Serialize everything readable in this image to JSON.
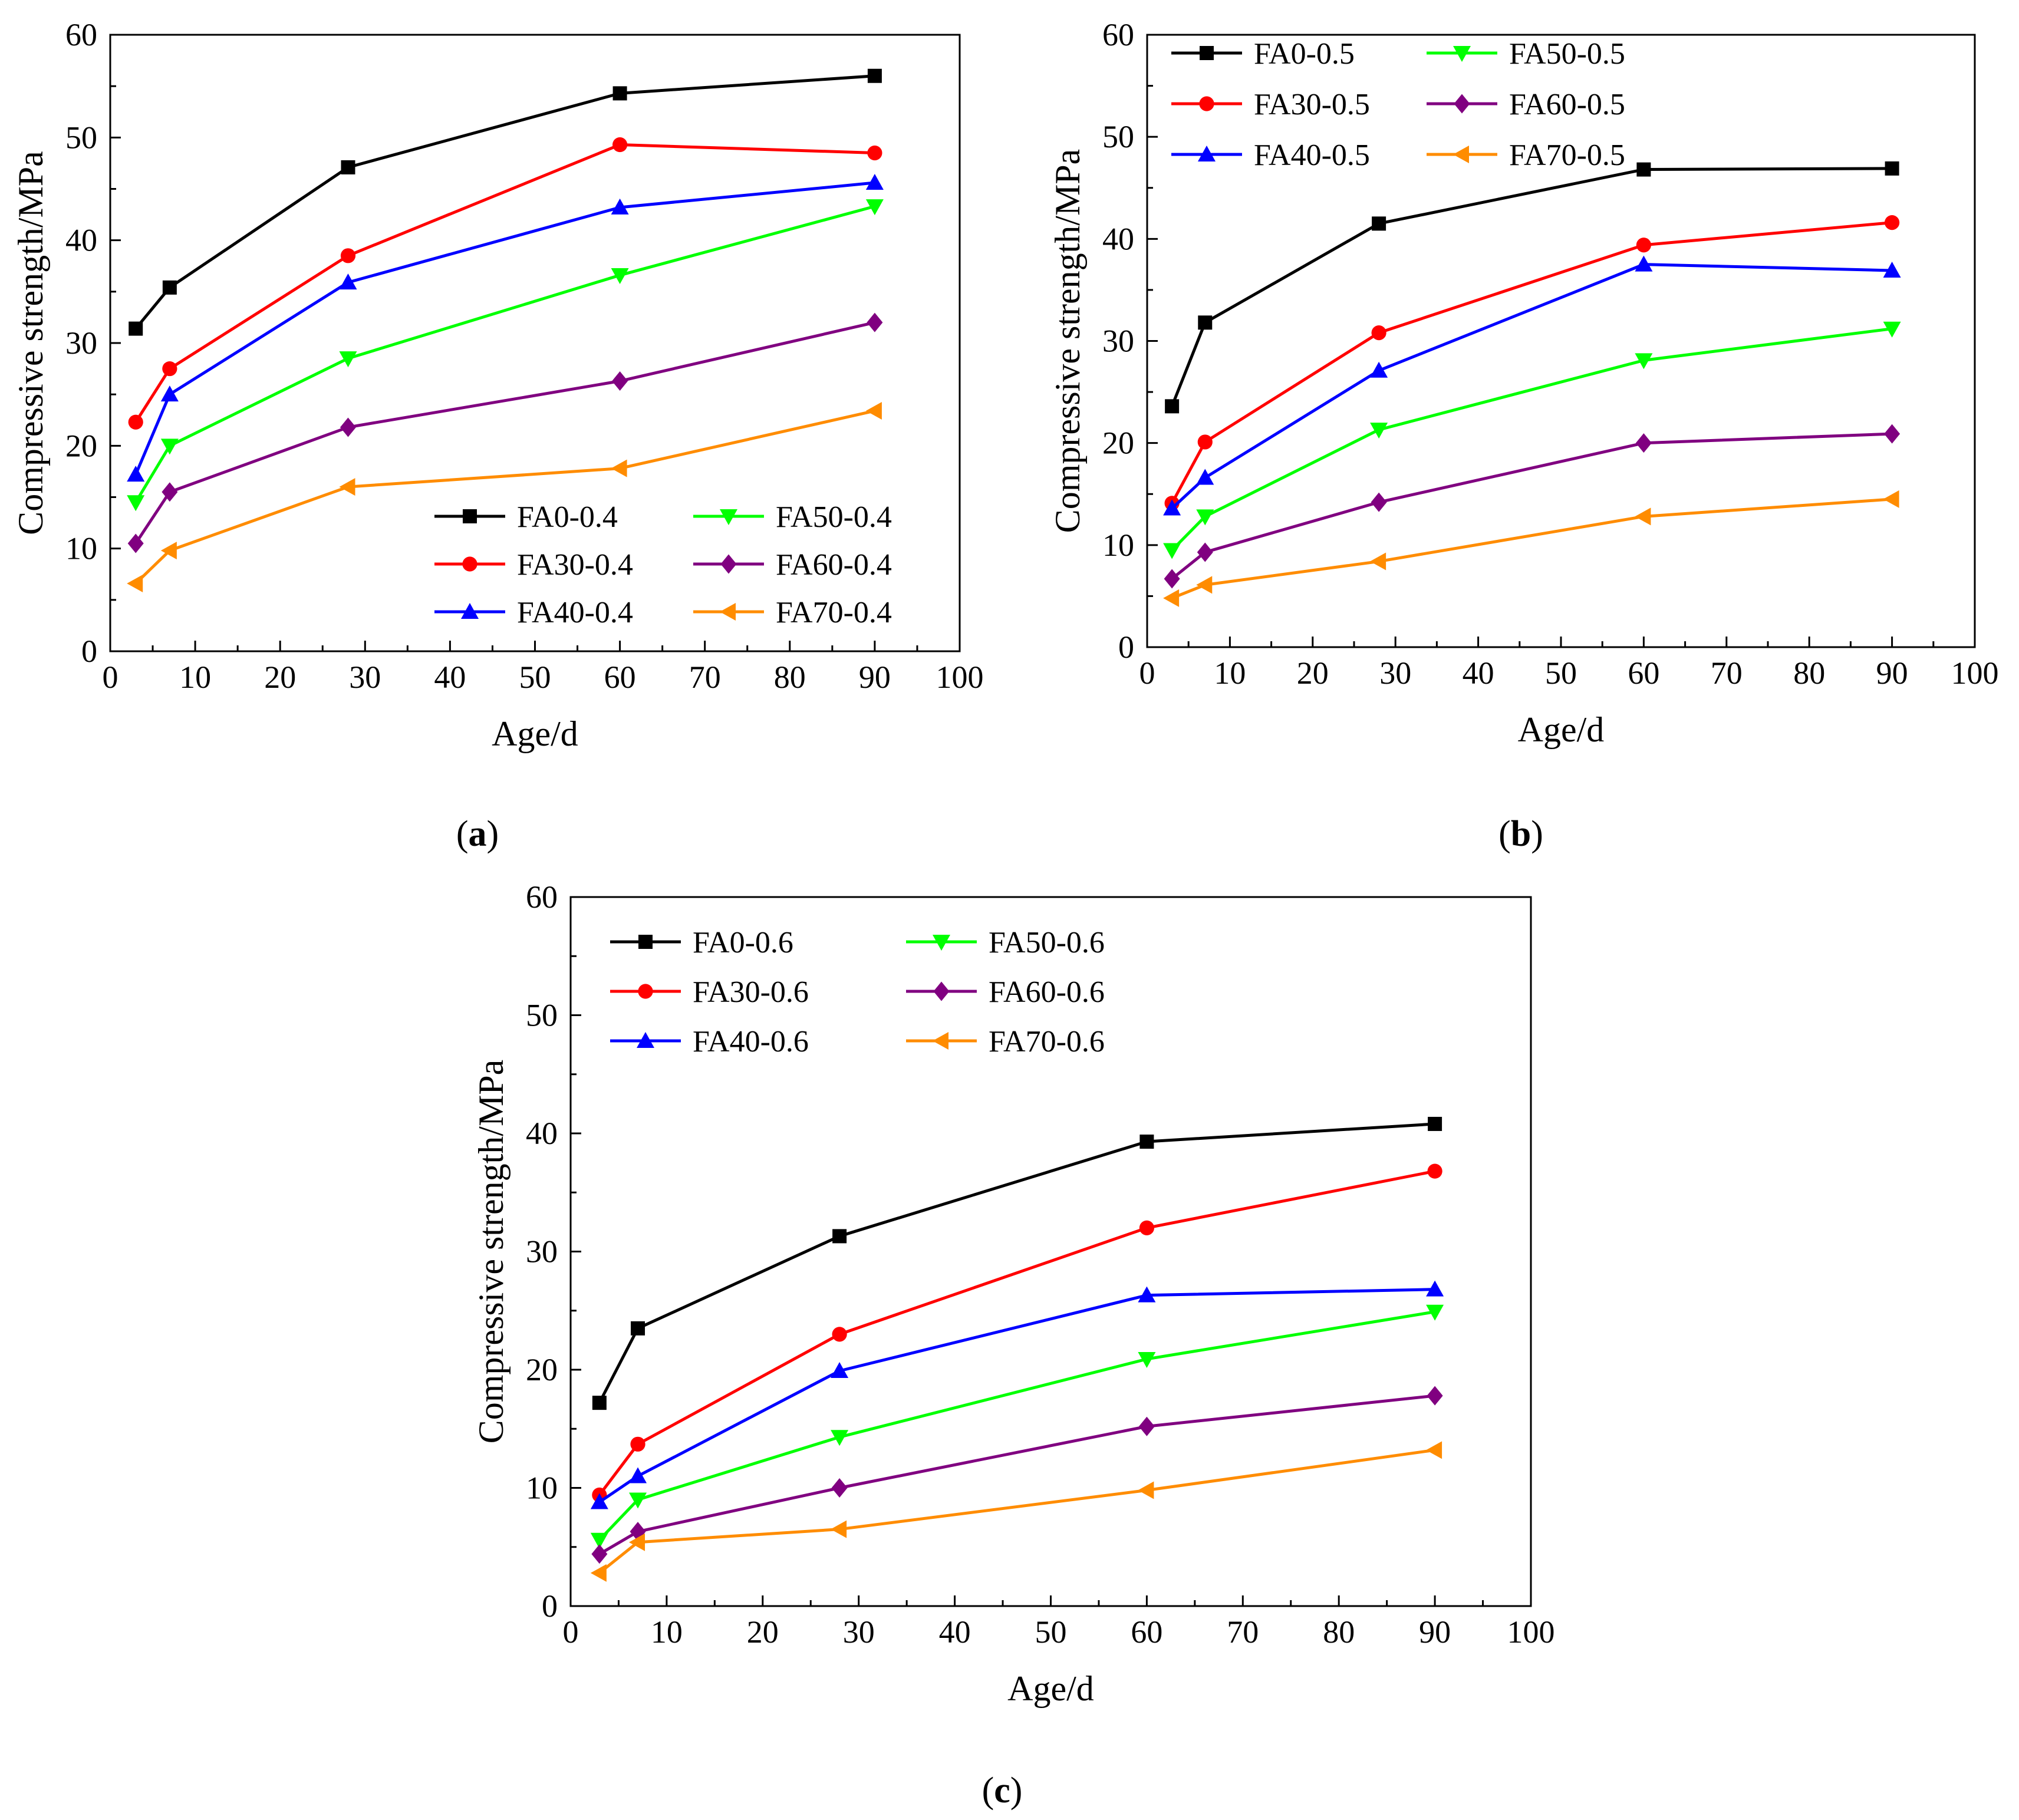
{
  "colors": {
    "FA0": "#000000",
    "FA30": "#ff0000",
    "FA40": "#0000ff",
    "FA50": "#00ff00",
    "FA60": "#800080",
    "FA70": "#ff8c00"
  },
  "markers": {
    "FA0": "square",
    "FA30": "circle",
    "FA40": "triangle-up",
    "FA50": "triangle-down",
    "FA60": "diamond",
    "FA70": "triangle-left"
  },
  "chart_data": [
    {
      "panel": "a",
      "panel_label": "(a)",
      "type": "line",
      "xlabel": "Age/d",
      "ylabel": "Compressive strength/MPa",
      "xlim": [
        0,
        100
      ],
      "ylim": [
        0,
        60
      ],
      "xticks": [
        0,
        10,
        20,
        30,
        40,
        50,
        60,
        70,
        80,
        90,
        100
      ],
      "yticks": [
        0,
        10,
        20,
        30,
        40,
        50,
        60
      ],
      "legend_position": "bottom-right",
      "x": [
        3,
        7,
        28,
        60,
        90
      ],
      "series": [
        {
          "name": "FA0-0.4",
          "key": "FA0",
          "values": [
            31.4,
            35.4,
            47.1,
            54.3,
            56.0
          ]
        },
        {
          "name": "FA30-0.4",
          "key": "FA30",
          "values": [
            22.3,
            27.5,
            38.5,
            49.3,
            48.5
          ]
        },
        {
          "name": "FA40-0.4",
          "key": "FA40",
          "values": [
            17.2,
            25.0,
            35.9,
            43.2,
            45.6
          ]
        },
        {
          "name": "FA50-0.4",
          "key": "FA50",
          "values": [
            14.5,
            20.0,
            28.5,
            36.6,
            43.3
          ]
        },
        {
          "name": "FA60-0.4",
          "key": "FA60",
          "values": [
            10.5,
            15.5,
            21.8,
            26.3,
            32.0
          ]
        },
        {
          "name": "FA70-0.4",
          "key": "FA70",
          "values": [
            6.6,
            9.8,
            16.0,
            17.8,
            23.4
          ]
        }
      ]
    },
    {
      "panel": "b",
      "panel_label": "(b)",
      "type": "line",
      "xlabel": "Age/d",
      "ylabel": "Compressive strength/MPa",
      "xlim": [
        0,
        100
      ],
      "ylim": [
        0,
        60
      ],
      "xticks": [
        0,
        10,
        20,
        30,
        40,
        50,
        60,
        70,
        80,
        90,
        100
      ],
      "yticks": [
        0,
        10,
        20,
        30,
        40,
        50,
        60
      ],
      "legend_position": "top-left",
      "x": [
        3,
        7,
        28,
        60,
        90
      ],
      "series": [
        {
          "name": "FA0-0.5",
          "key": "FA0",
          "values": [
            23.6,
            31.8,
            41.5,
            46.8,
            46.9
          ]
        },
        {
          "name": "FA30-0.5",
          "key": "FA30",
          "values": [
            14.1,
            20.1,
            30.8,
            39.4,
            41.6
          ]
        },
        {
          "name": "FA40-0.5",
          "key": "FA40",
          "values": [
            13.6,
            16.6,
            27.1,
            37.5,
            36.9
          ]
        },
        {
          "name": "FA50-0.5",
          "key": "FA50",
          "values": [
            9.5,
            12.8,
            21.3,
            28.1,
            31.2
          ]
        },
        {
          "name": "FA60-0.5",
          "key": "FA60",
          "values": [
            6.7,
            9.3,
            14.2,
            20.0,
            20.9
          ]
        },
        {
          "name": "FA70-0.5",
          "key": "FA70",
          "values": [
            4.8,
            6.1,
            8.4,
            12.8,
            14.5
          ]
        }
      ]
    },
    {
      "panel": "c",
      "panel_label": "(c)",
      "type": "line",
      "xlabel": "Age/d",
      "ylabel": "Compressive strength/MPa",
      "xlim": [
        0,
        100
      ],
      "ylim": [
        0,
        60
      ],
      "xticks": [
        0,
        10,
        20,
        30,
        40,
        50,
        60,
        70,
        80,
        90,
        100
      ],
      "yticks": [
        0,
        10,
        20,
        30,
        40,
        50,
        60
      ],
      "legend_position": "top-left",
      "x": [
        3,
        7,
        28,
        60,
        90
      ],
      "series": [
        {
          "name": "FA0-0.6",
          "key": "FA0",
          "values": [
            17.2,
            23.5,
            31.3,
            39.3,
            40.8
          ]
        },
        {
          "name": "FA30-0.6",
          "key": "FA30",
          "values": [
            9.4,
            13.7,
            23.0,
            32.0,
            36.8
          ]
        },
        {
          "name": "FA40-0.6",
          "key": "FA40",
          "values": [
            8.8,
            11.0,
            19.9,
            26.3,
            26.8
          ]
        },
        {
          "name": "FA50-0.6",
          "key": "FA50",
          "values": [
            5.6,
            9.0,
            14.3,
            20.9,
            24.9
          ]
        },
        {
          "name": "FA60-0.6",
          "key": "FA60",
          "values": [
            4.4,
            6.3,
            10.0,
            15.2,
            17.8
          ]
        },
        {
          "name": "FA70-0.6",
          "key": "FA70",
          "values": [
            2.8,
            5.4,
            6.5,
            9.8,
            13.2
          ]
        }
      ]
    }
  ]
}
